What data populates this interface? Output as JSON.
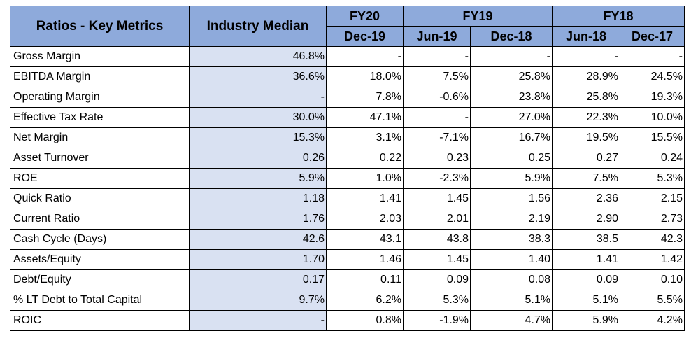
{
  "header": {
    "metric_col": "Ratios - Key Metrics",
    "median_col": "Industry Median",
    "groups": [
      "FY20",
      "FY19",
      "FY18"
    ],
    "periods": [
      "Dec-19",
      "Jun-19",
      "Dec-18",
      "Jun-18",
      "Dec-17"
    ]
  },
  "rows": [
    {
      "label": "Gross Margin",
      "median": "46.8%",
      "values": [
        "-",
        "-",
        "-",
        "-",
        "-"
      ]
    },
    {
      "label": "EBITDA Margin",
      "median": "36.6%",
      "values": [
        "18.0%",
        "7.5%",
        "25.8%",
        "28.9%",
        "24.5%"
      ]
    },
    {
      "label": "Operating Margin",
      "median": "-",
      "values": [
        "7.8%",
        "-0.6%",
        "23.8%",
        "25.8%",
        "19.3%"
      ]
    },
    {
      "label": "Effective Tax Rate",
      "median": "30.0%",
      "values": [
        "47.1%",
        "-",
        "27.0%",
        "22.3%",
        "10.0%"
      ]
    },
    {
      "label": "Net Margin",
      "median": "15.3%",
      "values": [
        "3.1%",
        "-7.1%",
        "16.7%",
        "19.5%",
        "15.5%"
      ]
    },
    {
      "label": "Asset Turnover",
      "median": "0.26",
      "values": [
        "0.22",
        "0.23",
        "0.25",
        "0.27",
        "0.24"
      ]
    },
    {
      "label": "ROE",
      "median": "5.9%",
      "values": [
        "1.0%",
        "-2.3%",
        "5.9%",
        "7.5%",
        "5.3%"
      ]
    },
    {
      "label": "Quick Ratio",
      "median": "1.18",
      "values": [
        "1.41",
        "1.45",
        "1.56",
        "2.36",
        "2.15"
      ]
    },
    {
      "label": "Current Ratio",
      "median": "1.76",
      "values": [
        "2.03",
        "2.01",
        "2.19",
        "2.90",
        "2.73"
      ]
    },
    {
      "label": "Cash Cycle (Days)",
      "median": "42.6",
      "values": [
        "43.1",
        "43.8",
        "38.3",
        "38.5",
        "42.3"
      ]
    },
    {
      "label": "Assets/Equity",
      "median": "1.70",
      "values": [
        "1.46",
        "1.45",
        "1.40",
        "1.41",
        "1.42"
      ]
    },
    {
      "label": "Debt/Equity",
      "median": "0.17",
      "values": [
        "0.11",
        "0.09",
        "0.08",
        "0.09",
        "0.10"
      ]
    },
    {
      "label": "% LT Debt to Total Capital",
      "median": "9.7%",
      "values": [
        "6.2%",
        "5.3%",
        "5.1%",
        "5.1%",
        "5.5%"
      ]
    },
    {
      "label": "ROIC",
      "median": "-",
      "values": [
        "0.8%",
        "-1.9%",
        "4.7%",
        "5.9%",
        "4.2%"
      ]
    }
  ],
  "colors": {
    "header_bg": "#8eaadb",
    "median_bg": "#d9e1f2",
    "border": "#000000"
  }
}
